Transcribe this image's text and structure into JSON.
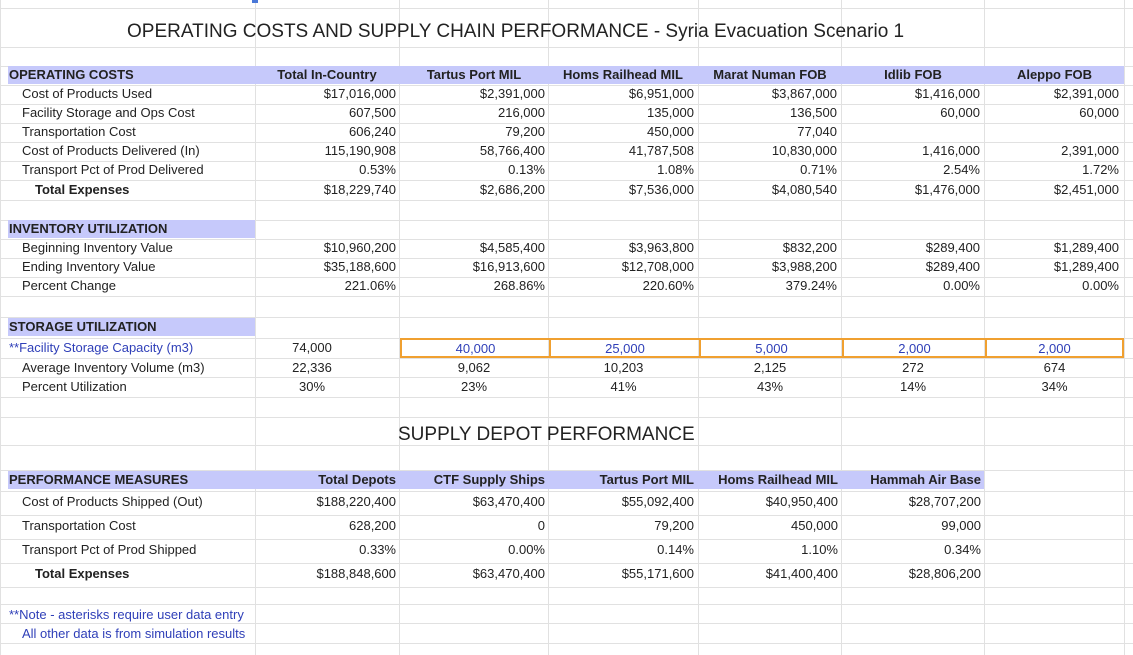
{
  "title": "OPERATING COSTS AND SUPPLY CHAIN PERFORMANCE - Syria Evacuation Scenario 1",
  "operating": {
    "header": "OPERATING COSTS",
    "cols": [
      "Total In-Country",
      "Tartus Port MIL",
      "Homs Railhead MIL",
      "Marat Numan FOB",
      "Idlib FOB",
      "Aleppo FOB"
    ],
    "rows": [
      {
        "label": "Cost of Products Used",
        "values": [
          "$17,016,000",
          "$2,391,000",
          "$6,951,000",
          "$3,867,000",
          "$1,416,000",
          "$2,391,000"
        ]
      },
      {
        "label": "Facility Storage and Ops Cost",
        "values": [
          "607,500",
          "216,000",
          "135,000",
          "136,500",
          "60,000",
          "60,000"
        ]
      },
      {
        "label": "Transportation Cost",
        "values": [
          "606,240",
          "79,200",
          "450,000",
          "77,040",
          "",
          ""
        ]
      },
      {
        "label": "Cost of Products Delivered (In)",
        "values": [
          "115,190,908",
          "58,766,400",
          "41,787,508",
          "10,830,000",
          "1,416,000",
          "2,391,000"
        ]
      },
      {
        "label": "Transport Pct of Prod Delivered",
        "values": [
          "0.53%",
          "0.13%",
          "1.08%",
          "0.71%",
          "2.54%",
          "1.72%"
        ]
      },
      {
        "label": "Total Expenses",
        "values": [
          "$18,229,740",
          "$2,686,200",
          "$7,536,000",
          "$4,080,540",
          "$1,476,000",
          "$2,451,000"
        ]
      }
    ]
  },
  "inventory": {
    "header": "INVENTORY UTILIZATION",
    "rows": [
      {
        "label": "Beginning Inventory Value",
        "values": [
          "$10,960,200",
          "$4,585,400",
          "$3,963,800",
          "$832,200",
          "$289,400",
          "$1,289,400"
        ]
      },
      {
        "label": "Ending Inventory Value",
        "values": [
          "$35,188,600",
          "$16,913,600",
          "$12,708,000",
          "$3,988,200",
          "$289,400",
          "$1,289,400"
        ]
      },
      {
        "label": "Percent Change",
        "values": [
          "221.06%",
          "268.86%",
          "220.60%",
          "379.24%",
          "0.00%",
          "0.00%"
        ]
      }
    ]
  },
  "storage": {
    "header": "STORAGE UTILIZATION",
    "rows": [
      {
        "label": "**Facility Storage Capacity (m3)",
        "values": [
          "74,000",
          "40,000",
          "25,000",
          "5,000",
          "2,000",
          "2,000"
        ]
      },
      {
        "label": "Average Inventory Volume (m3)",
        "values": [
          "22,336",
          "9,062",
          "10,203",
          "2,125",
          "272",
          "674"
        ]
      },
      {
        "label": "Percent Utilization",
        "values": [
          "30%",
          "23%",
          "41%",
          "43%",
          "14%",
          "34%"
        ]
      }
    ]
  },
  "depot_title": "SUPPLY DEPOT PERFORMANCE",
  "performance": {
    "header": "PERFORMANCE MEASURES",
    "cols": [
      "Total Depots",
      "CTF Supply Ships",
      "Tartus Port MIL",
      "Homs Railhead MIL",
      "Hammah Air Base"
    ],
    "rows": [
      {
        "label": "Cost of Products Shipped (Out)",
        "values": [
          "$188,220,400",
          "$63,470,400",
          "$55,092,400",
          "$40,950,400",
          "$28,707,200"
        ]
      },
      {
        "label": "Transportation Cost",
        "values": [
          "628,200",
          "0",
          "79,200",
          "450,000",
          "99,000"
        ]
      },
      {
        "label": "Transport Pct of Prod Shipped",
        "values": [
          "0.33%",
          "0.00%",
          "0.14%",
          "1.10%",
          "0.34%"
        ]
      },
      {
        "label": "Total Expenses",
        "values": [
          "$188,848,600",
          "$63,470,400",
          "$55,171,600",
          "$41,400,400",
          "$28,806,200"
        ]
      }
    ]
  },
  "notes": {
    "line1": "**Note - asterisks require user data entry",
    "line2": "All other data is from simulation results"
  },
  "colors": {
    "header_bg": "#c6c9fb",
    "highlight_border": "#f0a030",
    "input_text": "#2f3fb8"
  }
}
